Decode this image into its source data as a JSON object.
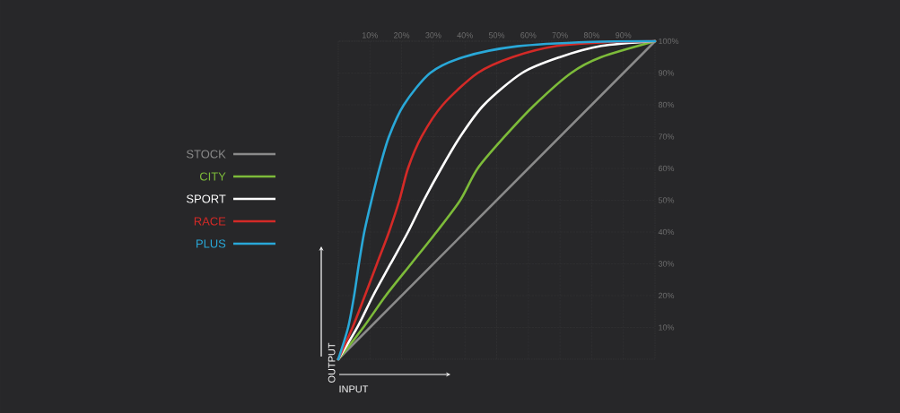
{
  "chart_data": {
    "type": "line",
    "xlabel": "INPUT",
    "ylabel": "OUTPUT",
    "xlim": [
      0,
      100
    ],
    "ylim": [
      0,
      100
    ],
    "xticks": [
      {
        "value": 10,
        "label": "10%"
      },
      {
        "value": 20,
        "label": "20%"
      },
      {
        "value": 30,
        "label": "30%"
      },
      {
        "value": 40,
        "label": "40%"
      },
      {
        "value": 50,
        "label": "50%"
      },
      {
        "value": 60,
        "label": "60%"
      },
      {
        "value": 70,
        "label": "70%"
      },
      {
        "value": 80,
        "label": "80%"
      },
      {
        "value": 90,
        "label": "90%"
      }
    ],
    "yticks": [
      {
        "value": 10,
        "label": "10%"
      },
      {
        "value": 20,
        "label": "20%"
      },
      {
        "value": 30,
        "label": "30%"
      },
      {
        "value": 40,
        "label": "40%"
      },
      {
        "value": 50,
        "label": "50%"
      },
      {
        "value": 60,
        "label": "60%"
      },
      {
        "value": 70,
        "label": "70%"
      },
      {
        "value": 80,
        "label": "80%"
      },
      {
        "value": 90,
        "label": "90%"
      },
      {
        "value": 100,
        "label": "100%"
      }
    ],
    "grid": true,
    "legend": "left",
    "marker": "none",
    "line_style": "solid",
    "series": [
      {
        "name": "STOCK",
        "color": "#8a8a8a",
        "x": [
          0,
          100
        ],
        "values": [
          0,
          100
        ]
      },
      {
        "name": "CITY",
        "color": "#7dbb3a",
        "x": [
          0,
          7.9,
          15,
          23,
          31,
          38.5,
          44,
          52.5,
          62,
          73.5,
          83,
          100
        ],
        "values": [
          0,
          10,
          20,
          30,
          40,
          50,
          60,
          70,
          80,
          90,
          95,
          100
        ]
      },
      {
        "name": "SPORT",
        "color": "#ffffff",
        "x": [
          0,
          6,
          11,
          16.5,
          22,
          27,
          32.5,
          38.5,
          46,
          58,
          70,
          83,
          100
        ],
        "values": [
          0,
          10,
          20,
          30,
          40,
          50,
          60,
          70,
          80,
          90,
          95,
          98.5,
          100
        ]
      },
      {
        "name": "RACE",
        "color": "#d42a27",
        "x": [
          0,
          4.5,
          8.4,
          12.2,
          16,
          19.3,
          22,
          26.3,
          33,
          44,
          55,
          69,
          85,
          100
        ],
        "values": [
          0,
          10,
          20,
          30,
          40,
          50,
          60,
          70,
          80,
          90,
          95,
          98.5,
          99.7,
          100
        ]
      },
      {
        "name": "PLUS",
        "color": "#29a8d8",
        "x": [
          0,
          3.1,
          5,
          6.5,
          8.2,
          10.5,
          13,
          16,
          20.7,
          29,
          39.5,
          56.5,
          80,
          100
        ],
        "values": [
          0,
          10,
          20,
          30,
          40,
          50,
          60,
          70,
          80,
          90,
          95,
          98.4,
          99.8,
          100
        ]
      }
    ]
  }
}
